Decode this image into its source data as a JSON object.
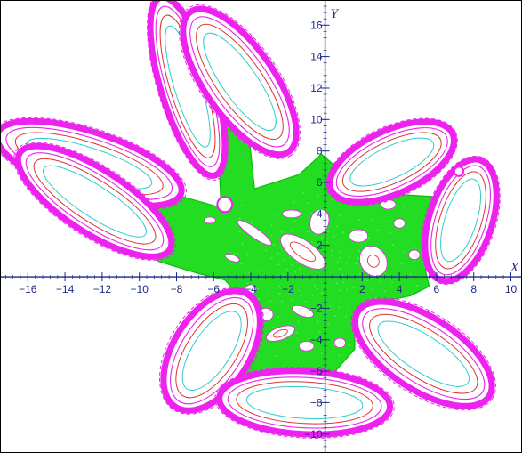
{
  "chart_data": {
    "type": "scatter",
    "title": "",
    "xlabel": "X",
    "ylabel": "Y",
    "xlim": [
      -17.5,
      10.6
    ],
    "ylim": [
      -11.2,
      17.6
    ],
    "grid": false,
    "x_ticks": [
      -16,
      -14,
      -12,
      -10,
      -8,
      -6,
      -4,
      -2,
      2,
      4,
      6,
      8,
      10
    ],
    "y_ticks": [
      -10,
      -8,
      -6,
      -4,
      -2,
      2,
      4,
      6,
      8,
      10,
      12,
      14,
      16
    ],
    "colors": {
      "axes": "#1a2a8a",
      "chaotic_sea": "#22dd22",
      "outer_layer": "#ee22ee",
      "orbit_red": "#dd3333",
      "orbit_cyan": "#33cccc",
      "frame": "#000000"
    },
    "chaotic_region": {
      "polygon": [
        [
          -5.8,
          9.5
        ],
        [
          -4.2,
          10.2
        ],
        [
          -3.8,
          5.6
        ],
        [
          -1.4,
          6.5
        ],
        [
          -0.2,
          7.8
        ],
        [
          0.8,
          6.8
        ],
        [
          1.2,
          5.6
        ],
        [
          3.0,
          5.3
        ],
        [
          5.8,
          5.1
        ],
        [
          6.2,
          4.5
        ],
        [
          5.6,
          2.2
        ],
        [
          5.4,
          0.4
        ],
        [
          5.6,
          -0.6
        ],
        [
          4.6,
          -1.2
        ],
        [
          3.0,
          -1.6
        ],
        [
          1.6,
          -3.0
        ],
        [
          1.6,
          -4.6
        ],
        [
          0.4,
          -6.2
        ],
        [
          -0.6,
          -7.0
        ],
        [
          -2.4,
          -6.8
        ],
        [
          -4.6,
          -6.4
        ],
        [
          -6.0,
          -6.2
        ],
        [
          -5.8,
          -4.8
        ],
        [
          -5.6,
          -3.2
        ],
        [
          -4.6,
          -1.2
        ],
        [
          -5.4,
          -0.2
        ],
        [
          -6.8,
          0.2
        ],
        [
          -9.0,
          1.0
        ],
        [
          -10.6,
          4.2
        ],
        [
          -11.6,
          5.4
        ],
        [
          -8.0,
          5.2
        ],
        [
          -5.6,
          4.4
        ]
      ],
      "holes": [
        {
          "cx": -3.8,
          "cy": 2.8,
          "rx": 1.1,
          "ry": 0.3,
          "angle": -35
        },
        {
          "cx": -1.8,
          "cy": 4.0,
          "rx": 0.5,
          "ry": 0.25,
          "angle": 0
        },
        {
          "cx": -1.2,
          "cy": 1.6,
          "rx": 1.4,
          "ry": 0.7,
          "angle": -35
        },
        {
          "cx": 1.8,
          "cy": 2.6,
          "rx": 0.5,
          "ry": 0.4,
          "angle": 0
        },
        {
          "cx": 2.6,
          "cy": 1.0,
          "rx": 0.7,
          "ry": 1.0,
          "angle": 30
        },
        {
          "cx": 4.0,
          "cy": 3.4,
          "rx": 0.3,
          "ry": 0.3,
          "angle": 0
        },
        {
          "cx": 4.8,
          "cy": 1.4,
          "rx": 0.3,
          "ry": 0.3,
          "angle": 0
        },
        {
          "cx": -2.4,
          "cy": -3.6,
          "rx": 0.8,
          "ry": 0.4,
          "angle": 20
        },
        {
          "cx": -1.2,
          "cy": -2.2,
          "rx": 0.6,
          "ry": 0.3,
          "angle": -20
        },
        {
          "cx": -3.2,
          "cy": -2.4,
          "rx": 0.4,
          "ry": 0.4,
          "angle": 0
        },
        {
          "cx": 0.8,
          "cy": -4.2,
          "rx": 0.3,
          "ry": 0.3,
          "angle": 0
        },
        {
          "cx": -4.0,
          "cy": -0.8,
          "rx": 0.3,
          "ry": 0.3,
          "angle": 0
        },
        {
          "cx": -1.0,
          "cy": -4.4,
          "rx": 0.4,
          "ry": 0.3,
          "angle": 0
        },
        {
          "cx": -5.0,
          "cy": 1.2,
          "rx": 0.4,
          "ry": 0.2,
          "angle": -20
        },
        {
          "cx": -0.3,
          "cy": 3.5,
          "rx": 0.5,
          "ry": 0.8,
          "angle": -15
        },
        {
          "cx": 0.5,
          "cy": 5.4,
          "rx": 0.35,
          "ry": 0.2,
          "angle": 0
        },
        {
          "cx": 3.4,
          "cy": 4.6,
          "rx": 0.4,
          "ry": 0.3,
          "angle": 0
        },
        {
          "cx": -6.2,
          "cy": 3.6,
          "rx": 0.3,
          "ry": 0.2,
          "angle": 0
        }
      ],
      "orbits": [
        {
          "cx": -1.2,
          "cy": 1.6,
          "rx": 0.8,
          "ry": 0.35,
          "angle": -35,
          "color": "#dd3333"
        },
        {
          "cx": 2.6,
          "cy": 1.0,
          "rx": 0.3,
          "ry": 0.4,
          "angle": 30,
          "color": "#dd3333"
        },
        {
          "cx": -2.4,
          "cy": -3.6,
          "rx": 0.4,
          "ry": 0.2,
          "angle": 20,
          "color": "#dd3333"
        }
      ]
    },
    "islands": [
      {
        "cx": -12.7,
        "cy": 7.2,
        "a": 5.2,
        "b": 2.0,
        "angle": -18
      },
      {
        "cx": -12.4,
        "cy": 4.8,
        "a": 4.8,
        "b": 2.0,
        "angle": -33
      },
      {
        "cx": -7.4,
        "cy": 12.1,
        "a": 5.0,
        "b": 1.7,
        "angle": -73
      },
      {
        "cx": -4.6,
        "cy": 12.4,
        "a": 4.6,
        "b": 2.2,
        "angle": -55
      },
      {
        "cx": 3.6,
        "cy": 7.3,
        "a": 3.6,
        "b": 2.0,
        "angle": 25
      },
      {
        "cx": 7.3,
        "cy": 3.6,
        "a": 3.4,
        "b": 2.0,
        "angle": 72
      },
      {
        "cx": 5.3,
        "cy": -4.9,
        "a": 4.2,
        "b": 2.3,
        "angle": -33
      },
      {
        "cx": -6.1,
        "cy": -4.7,
        "a": 3.6,
        "b": 2.4,
        "angle": 57
      },
      {
        "cx": -1.1,
        "cy": -8.0,
        "a": 4.6,
        "b": 2.0,
        "angle": -3
      }
    ],
    "small_features": [
      {
        "cx": -5.4,
        "cy": 4.6,
        "r": 0.4,
        "color": "#ee22ee"
      },
      {
        "cx": 7.2,
        "cy": 6.7,
        "r": 0.25,
        "color": "#ee22ee"
      }
    ]
  }
}
